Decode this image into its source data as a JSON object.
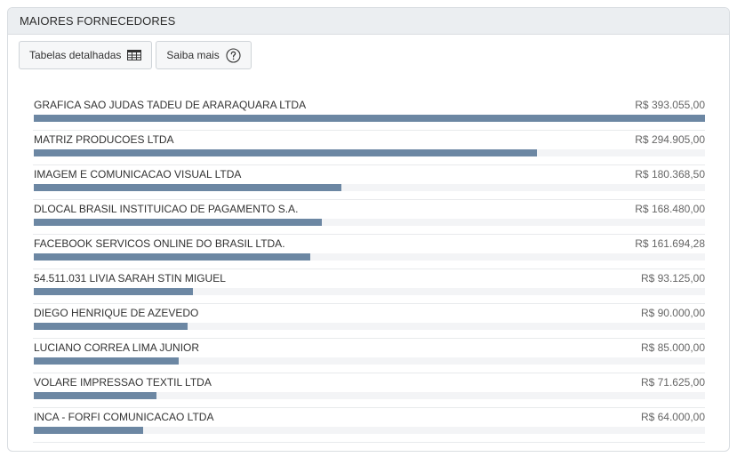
{
  "panel": {
    "title": "MAIORES FORNECEDORES"
  },
  "toolbar": {
    "detailed_tables_label": "Tabelas detalhadas",
    "detailed_tables_icon": "table-icon",
    "learn_more_label": "Saiba mais",
    "learn_more_icon": "question-circle-icon"
  },
  "colors": {
    "bar": "#6c87a3",
    "track": "#f3f4f6"
  },
  "suppliers": [
    {
      "name": "GRAFICA SAO JUDAS TADEU DE ARARAQUARA LTDA",
      "value_label": "R$ 393.055,00",
      "value": 393055.0
    },
    {
      "name": "MATRIZ PRODUCOES LTDA",
      "value_label": "R$ 294.905,00",
      "value": 294905.0
    },
    {
      "name": "IMAGEM E COMUNICACAO VISUAL LTDA",
      "value_label": "R$ 180.368,50",
      "value": 180368.5
    },
    {
      "name": "DLOCAL BRASIL INSTITUICAO DE PAGAMENTO S.A.",
      "value_label": "R$ 168.480,00",
      "value": 168480.0
    },
    {
      "name": "FACEBOOK SERVICOS ONLINE DO BRASIL LTDA.",
      "value_label": "R$ 161.694,28",
      "value": 161694.28
    },
    {
      "name": "54.511.031 LIVIA SARAH STIN MIGUEL",
      "value_label": "R$ 93.125,00",
      "value": 93125.0
    },
    {
      "name": "DIEGO HENRIQUE DE AZEVEDO",
      "value_label": "R$ 90.000,00",
      "value": 90000.0
    },
    {
      "name": "LUCIANO CORREA LIMA JUNIOR",
      "value_label": "R$ 85.000,00",
      "value": 85000.0
    },
    {
      "name": "VOLARE IMPRESSAO TEXTIL LTDA",
      "value_label": "R$ 71.625,00",
      "value": 71625.0
    },
    {
      "name": "INCA - FORFI COMUNICACAO LTDA",
      "value_label": "R$ 64.000,00",
      "value": 64000.0
    }
  ]
}
